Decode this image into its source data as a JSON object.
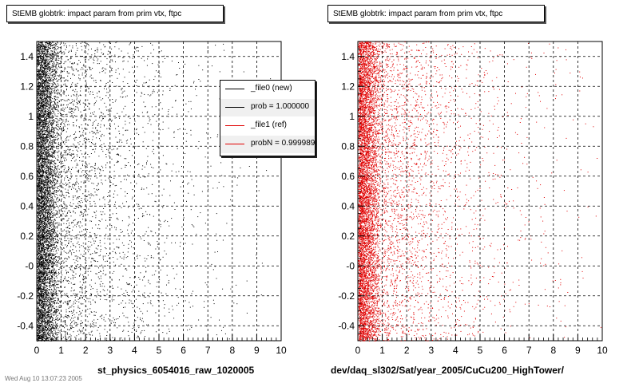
{
  "panels": [
    {
      "title": "StEMB globtrk: impact param from prim vtx, ftpc",
      "xlabel": "st_physics_6054016_raw_1020005",
      "marker_color": "#000000"
    },
    {
      "title": "StEMB globtrk: impact param from prim vtx, ftpc",
      "xlabel": "dev/daq_sl302/Sat/year_2005/CuCu200_HighTower/",
      "marker_color": "#e00000"
    }
  ],
  "legend": {
    "entries": [
      {
        "label": "_file0 (new)",
        "color": "#000000"
      },
      {
        "label": "prob = 1.000000",
        "color": "#000000"
      },
      {
        "label": "_file1 (ref)",
        "color": "#e00000"
      },
      {
        "label": "probN = 0.999989",
        "color": "#e00000"
      }
    ]
  },
  "footer_text": "Wed Aug 10 13:07:23 2005",
  "chart_data": [
    {
      "type": "scatter",
      "title": "StEMB globtrk: impact param from prim vtx, ftpc",
      "xlabel": "st_physics_6054016_raw_1020005",
      "ylabel": "",
      "xlim": [
        0,
        10
      ],
      "ylim": [
        -0.5,
        1.5
      ],
      "x_ticks": [
        "0",
        "1",
        "2",
        "3",
        "4",
        "5",
        "6",
        "7",
        "8",
        "9",
        "10"
      ],
      "y_ticks": [
        "-0.4",
        "-0.2",
        "-0",
        "0.2",
        "0.4",
        "0.6",
        "0.8",
        "1",
        "1.2",
        "1.4"
      ],
      "grid": true,
      "marker_color": "#000000",
      "distribution": "dense near x=0–1, falling off with x; roughly uniform in y"
    },
    {
      "type": "scatter",
      "title": "StEMB globtrk: impact param from prim vtx, ftpc",
      "xlabel": "dev/daq_sl302/Sat/year_2005/CuCu200_HighTower/",
      "ylabel": "",
      "xlim": [
        0,
        10
      ],
      "ylim": [
        -0.5,
        1.5
      ],
      "x_ticks": [
        "0",
        "1",
        "2",
        "3",
        "4",
        "5",
        "6",
        "7",
        "8",
        "9",
        "10"
      ],
      "y_ticks": [
        "-0.4",
        "-0.2",
        "-0",
        "0.2",
        "0.4",
        "0.6",
        "0.8",
        "1",
        "1.2",
        "1.4"
      ],
      "grid": true,
      "marker_color": "#e00000",
      "distribution": "dense near x=0–1, falling off with x; roughly uniform in y"
    }
  ]
}
